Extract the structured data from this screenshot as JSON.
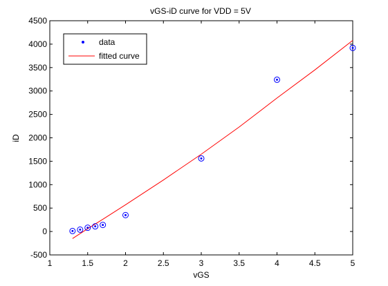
{
  "chart_data": {
    "type": "scatter",
    "title": "vGS-iD curve for VDD = 5V",
    "xlabel": "vGS",
    "ylabel": "iD",
    "xlim": [
      1,
      5
    ],
    "ylim": [
      -500,
      4500
    ],
    "xticks": [
      1,
      1.5,
      2,
      2.5,
      3,
      3.5,
      4,
      4.5,
      5
    ],
    "yticks": [
      -500,
      0,
      500,
      1000,
      1500,
      2000,
      2500,
      3000,
      3500,
      4000,
      4500
    ],
    "xtick_labels": [
      "1",
      "1.5",
      "2",
      "2.5",
      "3",
      "3.5",
      "4",
      "4.5",
      "5"
    ],
    "ytick_labels": [
      "-500",
      "0",
      "500",
      "1000",
      "1500",
      "2000",
      "2500",
      "3000",
      "3500",
      "4000",
      "4500"
    ],
    "grid": false,
    "legend_position": "top-left",
    "series": [
      {
        "name": "data",
        "kind": "marker",
        "color": "#0000ff",
        "x": [
          1.3,
          1.4,
          1.5,
          1.6,
          1.7,
          2.0,
          3.0,
          4.0,
          5.0
        ],
        "y": [
          10,
          40,
          80,
          110,
          140,
          350,
          1560,
          3240,
          3920
        ]
      },
      {
        "name": "fitted curve",
        "kind": "line",
        "color": "#ff0000",
        "x": [
          1.3,
          1.5,
          1.7,
          2.0,
          2.5,
          3.0,
          3.5,
          4.0,
          4.5,
          5.0
        ],
        "y": [
          -150,
          60,
          260,
          570,
          1100,
          1650,
          2230,
          2850,
          3450,
          4080
        ]
      }
    ]
  }
}
